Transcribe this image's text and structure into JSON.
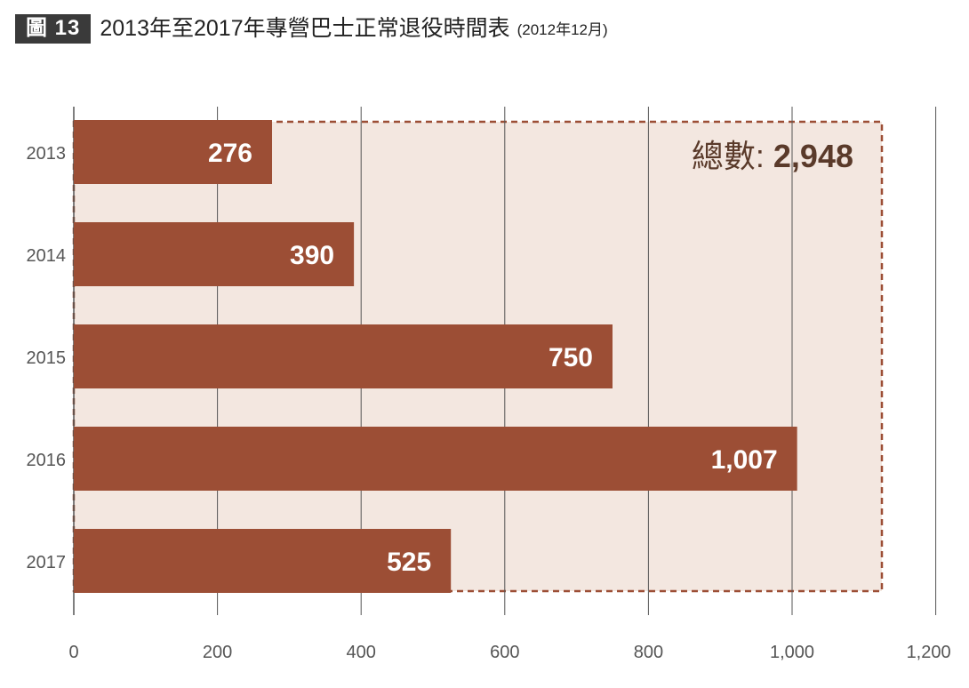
{
  "header": {
    "figure_label": "圖 13",
    "title": "2013年至2017年專營巴士正常退役時間表",
    "subtitle": "(2012年12月)"
  },
  "chart_data": {
    "type": "bar",
    "orientation": "horizontal",
    "title": "2013年至2017年專營巴士正常退役時間表",
    "subtitle": "(2012年12月)",
    "categories": [
      "2013",
      "2014",
      "2015",
      "2016",
      "2017"
    ],
    "values": [
      276,
      390,
      750,
      1007,
      525
    ],
    "value_labels": [
      "276",
      "390",
      "750",
      "1,007",
      "525"
    ],
    "xlim": [
      0,
      1200
    ],
    "xticks": [
      0,
      200,
      400,
      600,
      800,
      1000,
      1200
    ],
    "xtick_labels": [
      "0",
      "200",
      "400",
      "600",
      "800",
      "1,000",
      "1,200"
    ],
    "xlabel": "",
    "ylabel": "",
    "grid": "vertical",
    "annotation": {
      "label": "總數:",
      "value": "2,948",
      "extent_to": 1125
    },
    "colors": {
      "bar": "#9c4e35",
      "box_fill": "#f3e7e0",
      "box_border": "#9c4e35",
      "grid": "#555555"
    }
  }
}
